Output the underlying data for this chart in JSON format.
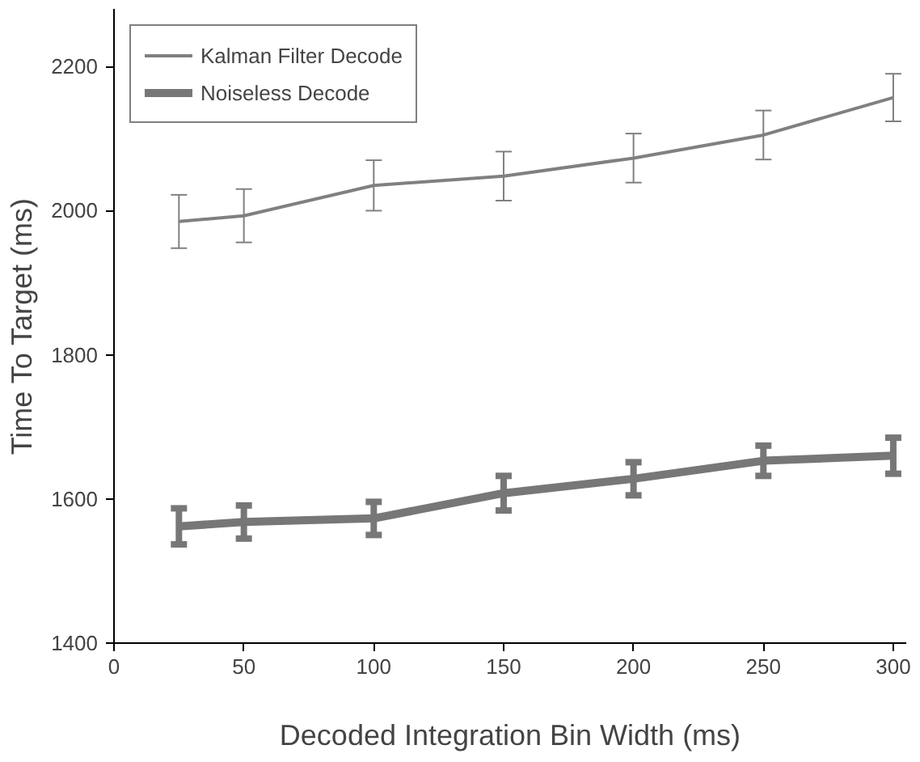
{
  "chart_data": {
    "type": "line",
    "xlabel": "Decoded Integration Bin Width (ms)",
    "ylabel": "Time To Target (ms)",
    "x": [
      25,
      50,
      100,
      150,
      200,
      250,
      300
    ],
    "series": [
      {
        "name": "Kalman Filter Decode",
        "color": "#808080",
        "values": [
          1985,
          1993,
          2035,
          2048,
          2073,
          2105,
          2157
        ],
        "errors": [
          37,
          37,
          35,
          34,
          34,
          34,
          33
        ]
      },
      {
        "name": "Noiseless Decode",
        "color": "#777777",
        "values": [
          1562,
          1568,
          1573,
          1608,
          1628,
          1653,
          1660
        ],
        "errors": [
          25,
          23,
          23,
          24,
          23,
          21,
          25
        ]
      }
    ],
    "xlim": [
      0,
      305
    ],
    "xticks": [
      0,
      50,
      100,
      150,
      200,
      250,
      300
    ],
    "ylim": [
      1400,
      2280
    ],
    "yticks": [
      1400,
      1600,
      1800,
      2000,
      2200
    ],
    "grid": false,
    "legend": "top left",
    "marker": "none",
    "line_style": "solid"
  }
}
